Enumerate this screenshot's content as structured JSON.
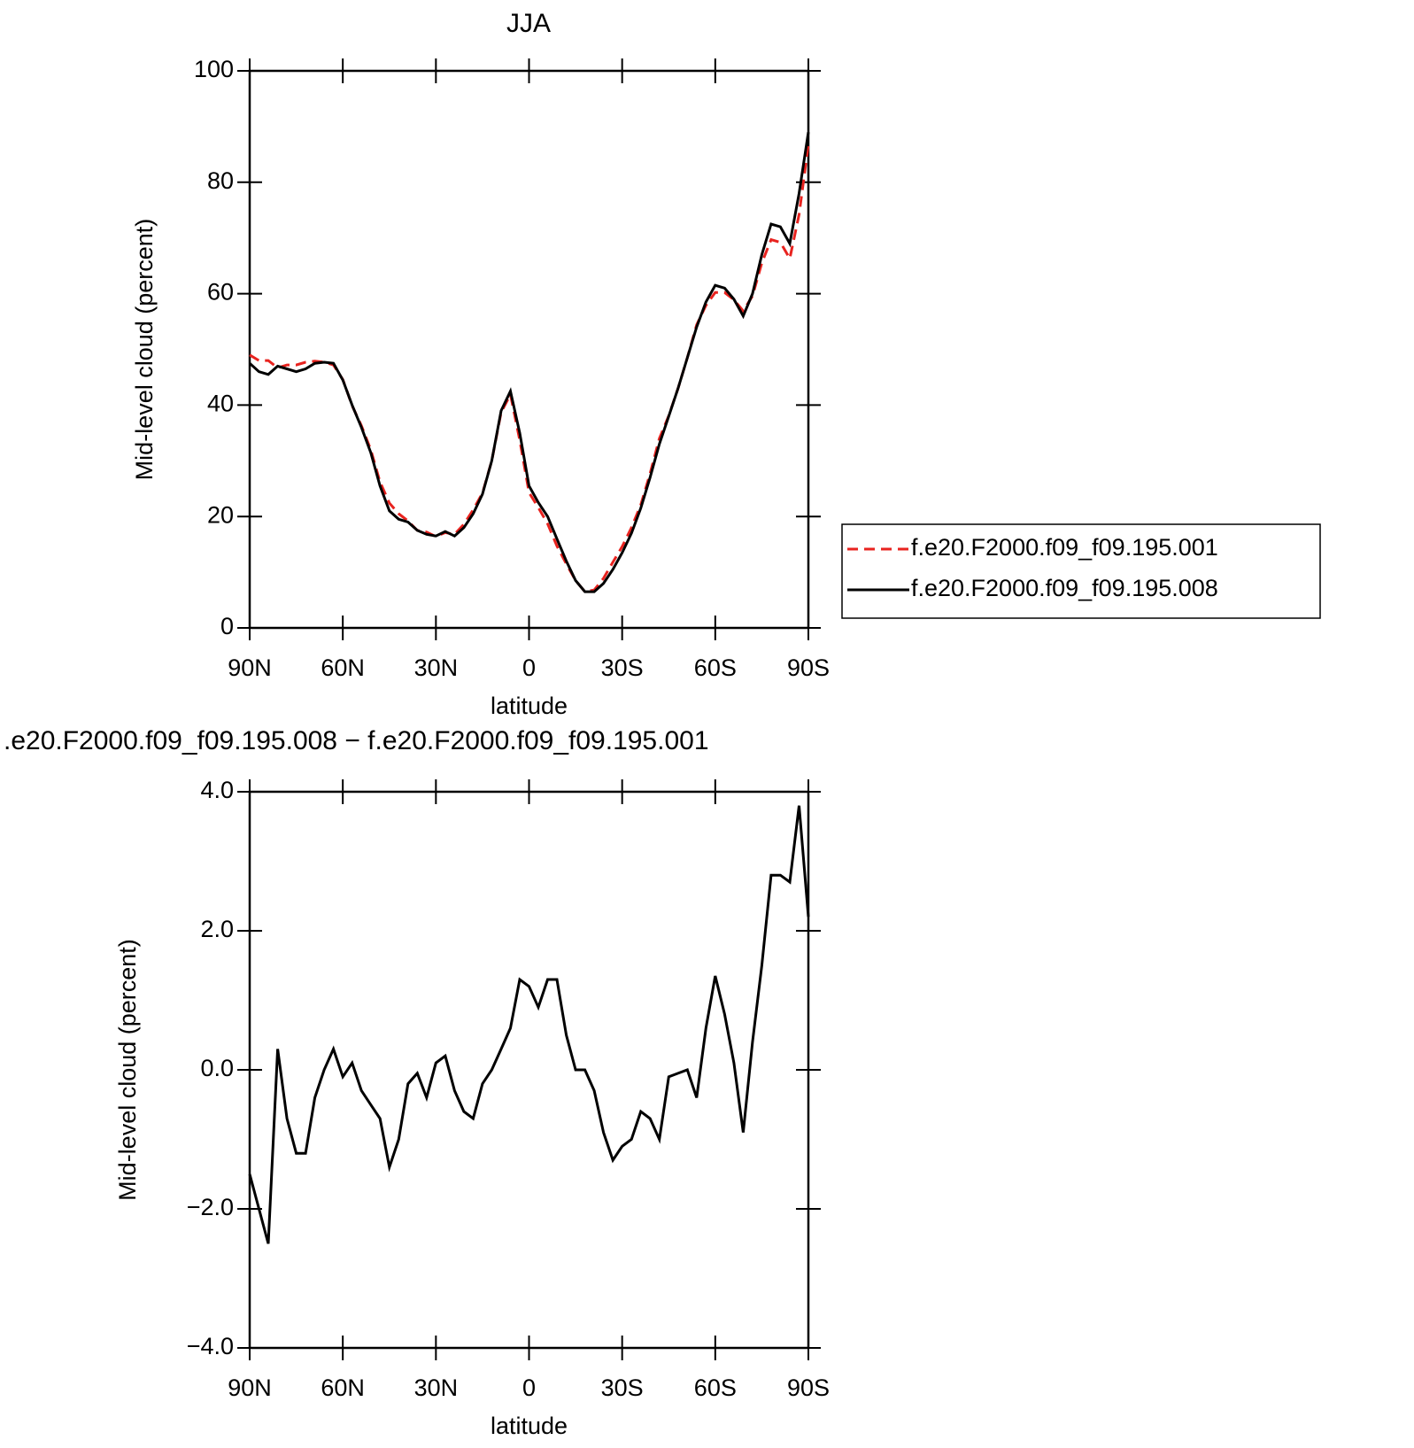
{
  "chart_data": [
    {
      "type": "line",
      "title": "JJA",
      "x_label": "latitude",
      "y_label": "Mid-level cloud (percent)",
      "x": [
        90,
        87,
        84,
        81,
        78,
        75,
        72,
        69,
        66,
        63,
        60,
        57,
        54,
        51,
        48,
        45,
        42,
        39,
        36,
        33,
        30,
        27,
        24,
        21,
        18,
        15,
        12,
        9,
        6,
        3,
        0,
        -3,
        -6,
        -9,
        -12,
        -15,
        -18,
        -21,
        -24,
        -27,
        -30,
        -33,
        -36,
        -39,
        -42,
        -45,
        -48,
        -51,
        -54,
        -57,
        -60,
        -63,
        -66,
        -69,
        -72,
        -75,
        -78,
        -81,
        -84,
        -87,
        -90
      ],
      "series": [
        {
          "name": "f.e20.F2000.f09_f09.195.001",
          "color": "#e8231f",
          "line_style": "dashed",
          "values": [
            49,
            48,
            48,
            46.7,
            47.2,
            47.2,
            47.7,
            47.9,
            47.7,
            47.2,
            44.6,
            39.9,
            36.3,
            32,
            26.2,
            22.4,
            20.5,
            19.2,
            17.5,
            17.2,
            16.4,
            17.1,
            16.8,
            18.6,
            21.2,
            24.2,
            30,
            38.7,
            41.9,
            33.7,
            24.3,
            21.6,
            18.7,
            14.7,
            11.5,
            8.5,
            6.5,
            6.8,
            8.9,
            11.8,
            14.6,
            18,
            22.1,
            27.7,
            34,
            38.1,
            43,
            48.5,
            54.4,
            57.9,
            60.2,
            60.2,
            58.9,
            56.9,
            59.6,
            65.5,
            69.7,
            69.2,
            66.3,
            74.2,
            86.8
          ]
        },
        {
          "name": "f.e20.F2000.f09_f09.195.008",
          "color": "#000000",
          "line_style": "solid",
          "values": [
            47.5,
            46,
            45.5,
            47,
            46.5,
            46,
            46.5,
            47.5,
            47.7,
            47.5,
            44.5,
            40,
            36,
            31.5,
            25.5,
            21,
            19.5,
            19,
            17.5,
            16.8,
            16.5,
            17.3,
            16.5,
            18,
            20.5,
            24,
            30,
            39,
            42.5,
            35,
            25.5,
            22.5,
            20,
            16,
            12,
            8.5,
            6.5,
            6.5,
            8,
            10.5,
            13.5,
            17,
            21.5,
            27,
            33,
            38,
            43,
            48.5,
            54,
            58.5,
            61.5,
            61,
            59,
            56,
            60,
            67,
            72.5,
            72,
            69,
            78,
            89
          ]
        }
      ],
      "xlim": [
        90,
        -90
      ],
      "xticks": [
        {
          "value": 90,
          "label": "90N"
        },
        {
          "value": 60,
          "label": "60N"
        },
        {
          "value": 30,
          "label": "30N"
        },
        0,
        {
          "value": -30,
          "label": "30S"
        },
        {
          "value": -60,
          "label": "60S"
        },
        {
          "value": -90,
          "label": "90S"
        }
      ],
      "ylim": [
        0,
        100
      ],
      "yticks": [
        0,
        20,
        40,
        60,
        80,
        100
      ],
      "legend_position": "right"
    },
    {
      "type": "line",
      "title": ".e20.F2000.f09_f09.195.008 − f.e20.F2000.f09_f09.195.001",
      "x_label": "latitude",
      "y_label": "Mid-level cloud (percent)",
      "x": [
        90,
        87,
        84,
        81,
        78,
        75,
        72,
        69,
        66,
        63,
        60,
        57,
        54,
        51,
        48,
        45,
        42,
        39,
        36,
        33,
        30,
        27,
        24,
        21,
        18,
        15,
        12,
        9,
        6,
        3,
        0,
        -3,
        -6,
        -9,
        -12,
        -15,
        -18,
        -21,
        -24,
        -27,
        -30,
        -33,
        -36,
        -39,
        -42,
        -45,
        -48,
        -51,
        -54,
        -57,
        -60,
        -63,
        -66,
        -69,
        -72,
        -75,
        -78,
        -81,
        -84,
        -87,
        -90
      ],
      "series": [
        {
          "color": "#000000",
          "line_style": "solid",
          "values": [
            -1.5,
            -2.0,
            -2.5,
            0.3,
            -0.7,
            -1.2,
            -1.2,
            -0.4,
            0.0,
            0.3,
            -0.1,
            0.1,
            -0.3,
            -0.5,
            -0.7,
            -1.4,
            -1.0,
            -0.2,
            -0.05,
            -0.4,
            0.1,
            0.2,
            -0.3,
            -0.6,
            -0.7,
            -0.2,
            0.0,
            0.3,
            0.6,
            1.3,
            1.2,
            0.9,
            1.3,
            1.3,
            0.5,
            0.0,
            0.0,
            -0.3,
            -0.9,
            -1.3,
            -1.1,
            -1.0,
            -0.6,
            -0.7,
            -1.0,
            -0.1,
            -0.05,
            0.0,
            -0.4,
            0.6,
            1.35,
            0.8,
            0.1,
            -0.9,
            0.4,
            1.5,
            2.8,
            2.8,
            2.7,
            3.8,
            2.2
          ]
        }
      ],
      "xlim": [
        90,
        -90
      ],
      "xticks": [
        {
          "value": 90,
          "label": "90N"
        },
        {
          "value": 60,
          "label": "60N"
        },
        {
          "value": 30,
          "label": "30N"
        },
        0,
        {
          "value": -30,
          "label": "30S"
        },
        {
          "value": -60,
          "label": "60S"
        },
        {
          "value": -90,
          "label": "90S"
        }
      ],
      "ylim": [
        -4,
        4
      ],
      "yticks": [
        {
          "value": -4,
          "label": "−4.0"
        },
        {
          "value": -2,
          "label": "−2.0"
        },
        {
          "value": 0,
          "label": "0.0"
        },
        {
          "value": 2,
          "label": "2.0"
        },
        {
          "value": 4,
          "label": "4.0"
        }
      ]
    }
  ]
}
